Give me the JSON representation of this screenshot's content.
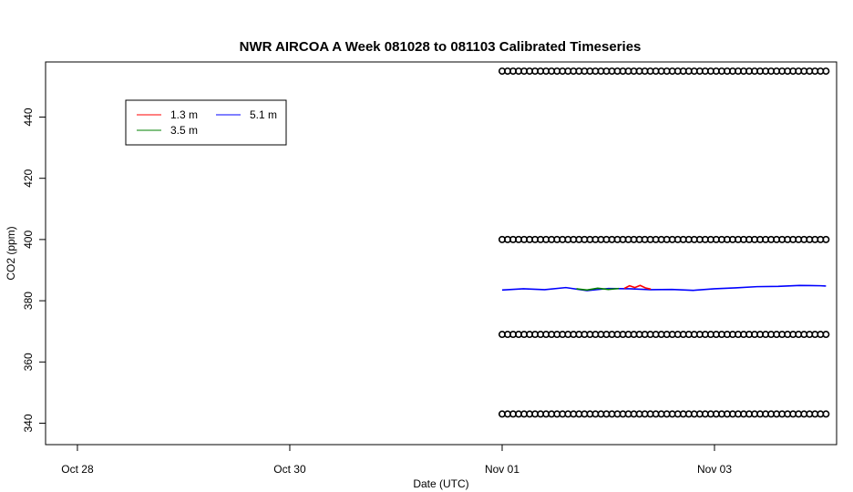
{
  "chart_data": {
    "type": "line",
    "title": "NWR AIRCOA A  Week 081028 to 081103  Calibrated Timeseries",
    "xlabel": "Date (UTC)",
    "ylabel": "CO2 (ppm)",
    "x_ticks": [
      {
        "label": "Oct 28",
        "day": 0
      },
      {
        "label": "Oct 30",
        "day": 2
      },
      {
        "label": "Nov 01",
        "day": 4
      },
      {
        "label": "Nov 03",
        "day": 6
      }
    ],
    "y_ticks": [
      340,
      360,
      380,
      400,
      420,
      440
    ],
    "xlim": [
      -0.3,
      7.15
    ],
    "ylim": [
      333,
      458
    ],
    "legend": {
      "position": "top-left",
      "entries": [
        {
          "name": "1.3 m",
          "color": "#ff0000"
        },
        {
          "name": "3.5 m",
          "color": "#008000"
        },
        {
          "name": "5.1 m",
          "color": "#0000ff"
        }
      ]
    },
    "series": [
      {
        "name": "5.1 m",
        "color": "#0000ff",
        "x": [
          4.0,
          4.2,
          4.4,
          4.6,
          4.8,
          5.0,
          5.2,
          5.4,
          5.6,
          5.8,
          6.0,
          6.2,
          6.4,
          6.6,
          6.8,
          7.0,
          7.05
        ],
        "y": [
          383.5,
          383.9,
          383.6,
          384.3,
          383.3,
          384.0,
          383.9,
          383.6,
          383.7,
          383.4,
          383.9,
          384.2,
          384.6,
          384.7,
          385.0,
          384.9,
          384.8
        ]
      },
      {
        "name": "1.3 m",
        "color": "#ff0000",
        "x": [
          5.15,
          5.2,
          5.25,
          5.3,
          5.35,
          5.4
        ],
        "y": [
          384.0,
          384.9,
          384.3,
          385.0,
          384.2,
          383.8
        ]
      },
      {
        "name": "3.5 m",
        "color": "#008000",
        "x": [
          4.7,
          4.8,
          4.9,
          5.0,
          5.1
        ],
        "y": [
          383.9,
          383.5,
          384.1,
          383.7,
          384.0
        ]
      }
    ],
    "calibration_points": {
      "marker": "open-circle",
      "color": "#000000",
      "x_start": 4.0,
      "x_end": 7.05,
      "count_per_level": 60,
      "levels": [
        343,
        369,
        400,
        455
      ]
    }
  }
}
